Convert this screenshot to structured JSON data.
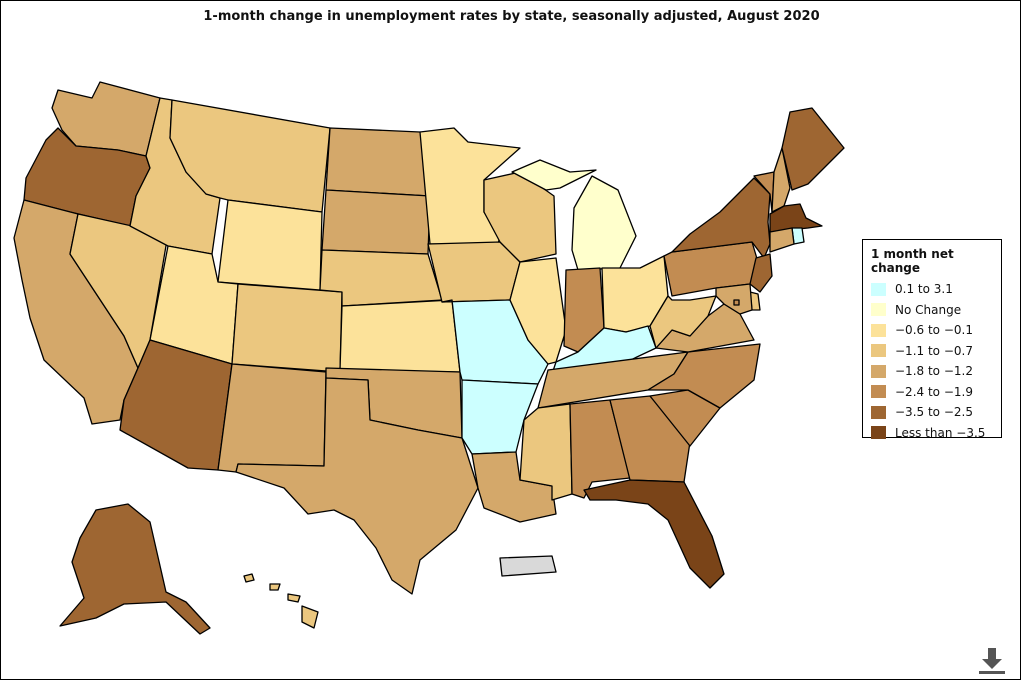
{
  "title": "1-month change in unemployment rates by state, seasonally adjusted, August 2020",
  "legend": {
    "title": "1 month net change",
    "items": [
      {
        "label": "0.1 to 3.1",
        "color": "#ccffff"
      },
      {
        "label": "No Change",
        "color": "#ffffcc"
      },
      {
        "label": "−0.6 to −0.1",
        "color": "#fce29a"
      },
      {
        "label": "−1.1 to −0.7",
        "color": "#ebc77f"
      },
      {
        "label": "−1.8 to −1.2",
        "color": "#d4a86a"
      },
      {
        "label": "−2.4 to −1.9",
        "color": "#c28c52"
      },
      {
        "label": "−3.5 to −2.5",
        "color": "#9e6632"
      },
      {
        "label": "Less than −3.5",
        "color": "#7a4418"
      }
    ]
  },
  "no_data_color": "#d9d9d9",
  "states": {
    "WA": 4,
    "OR": 6,
    "CA": 4,
    "NV": 3,
    "ID": 3,
    "MT": 3,
    "WY": 2,
    "UT": 2,
    "AZ": 6,
    "CO": 3,
    "NM": 4,
    "ND": 4,
    "SD": 4,
    "NE": 3,
    "KS": 2,
    "OK": 4,
    "TX": 4,
    "MN": 2,
    "IA": 3,
    "MO": 0,
    "AR": 0,
    "LA": 4,
    "WI": 3,
    "IL": 2,
    "MI": 1,
    "IN": 5,
    "OH": 2,
    "KY": 0,
    "TN": 4,
    "MS": 3,
    "AL": 5,
    "GA": 5,
    "FL": 7,
    "SC": 5,
    "NC": 5,
    "VA": 4,
    "WV": 3,
    "PA": 5,
    "NY": 6,
    "VT": 5,
    "NH": 4,
    "ME": 6,
    "MA": 7,
    "RI": 0,
    "CT": 4,
    "NJ": 6,
    "DE": 3,
    "MD": 4,
    "DC": 5,
    "AK": 6,
    "HI": 3,
    "PR": "none"
  },
  "download_icon": "download-icon"
}
